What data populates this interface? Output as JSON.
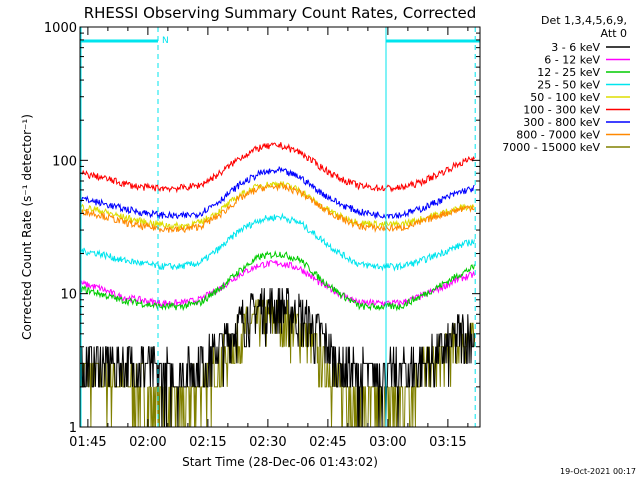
{
  "chart_data": {
    "type": "line",
    "title": "RHESSI Observing Summary Count Rates, Corrected",
    "xlabel": "Start Time (28-Dec-06 01:43:02)",
    "ylabel": "Corrected Count Rate (s⁻¹ detector⁻¹)",
    "y_scale": "log",
    "ylim": [
      1,
      1000
    ],
    "xlim_minutes_after_start": [
      0,
      100
    ],
    "x_tick_labels": [
      "01:45",
      "02:00",
      "02:15",
      "02:30",
      "02:45",
      "03:00",
      "03:15"
    ],
    "x_tick_minutes": [
      1.97,
      16.97,
      31.97,
      46.97,
      61.97,
      76.97,
      91.97
    ],
    "y_tick_labels": [
      "1",
      "10",
      "100",
      "1000"
    ],
    "y_tick_values": [
      1,
      10,
      100,
      1000
    ],
    "legend_header": [
      "Det 1,3,4,5,6,9,",
      "Att 0"
    ],
    "legend_position": "right",
    "footer_date": "19-Oct-2021 00:17",
    "annotations": [
      {
        "text": "N",
        "type": "night",
        "x_range_minutes": [
          0,
          19.5
        ]
      },
      {
        "text": "",
        "type": "night",
        "x_range_minutes": [
          76.5,
          100
        ]
      }
    ],
    "vertical_markers_minutes": [
      19.5,
      98.8
    ],
    "x_sample_minutes": [
      0,
      5,
      10,
      15,
      20,
      25,
      30,
      35,
      40,
      45,
      50,
      55,
      60,
      65,
      70,
      75,
      80,
      85,
      90,
      95,
      98.8
    ],
    "series": [
      {
        "name": "3 - 6 keV",
        "color": "#000000",
        "values": [
          3,
          3,
          3,
          3,
          2.5,
          2.5,
          3,
          4,
          6,
          8,
          8,
          7,
          5,
          3,
          2.5,
          2.5,
          2.5,
          3,
          3.5,
          5,
          5
        ]
      },
      {
        "name": "6 - 12 keV",
        "color": "#ff00ff",
        "values": [
          12,
          11,
          9.5,
          9,
          8.5,
          8.5,
          9,
          11,
          14,
          16.5,
          17,
          15.5,
          12,
          10,
          8.5,
          8.5,
          8.5,
          9.5,
          11,
          13,
          14
        ]
      },
      {
        "name": "12 - 25 keV",
        "color": "#00cc00",
        "values": [
          11,
          10,
          9,
          8.5,
          8,
          8,
          8.5,
          11,
          15,
          19,
          20,
          18,
          13,
          10,
          8,
          8,
          8,
          9.5,
          11.5,
          14,
          16
        ]
      },
      {
        "name": "25 - 50 keV",
        "color": "#00e5ee",
        "values": [
          21,
          20,
          18,
          17,
          16,
          16,
          17,
          22,
          30,
          36,
          38,
          34,
          26,
          20,
          16.5,
          16,
          16,
          17.5,
          20,
          23,
          25
        ]
      },
      {
        "name": "50 - 100 keV",
        "color": "#dddd00",
        "values": [
          45,
          42,
          38,
          35,
          33,
          32,
          34,
          42,
          55,
          65,
          67,
          60,
          46,
          38,
          34,
          33,
          33,
          36,
          40,
          44,
          45
        ]
      },
      {
        "name": "100 - 300 keV",
        "color": "#ff0000",
        "values": [
          80,
          75,
          68,
          63,
          62,
          62,
          65,
          80,
          105,
          125,
          130,
          115,
          90,
          73,
          64,
          62,
          62,
          68,
          80,
          95,
          105
        ]
      },
      {
        "name": "300 - 800 keV",
        "color": "#0000ff",
        "values": [
          52,
          48,
          44,
          41,
          39,
          38,
          40,
          50,
          66,
          80,
          84,
          75,
          58,
          47,
          41,
          39,
          39,
          43,
          50,
          58,
          62
        ]
      },
      {
        "name": "800 - 7000 keV",
        "color": "#ff8800",
        "values": [
          42,
          39,
          35,
          32,
          31,
          30,
          32,
          39,
          52,
          62,
          64,
          58,
          45,
          37,
          32,
          31,
          31,
          34,
          39,
          43,
          45
        ]
      },
      {
        "name": "7000 - 15000 keV",
        "color": "#808000",
        "values": [
          2.5,
          2.5,
          2.2,
          2,
          1.5,
          1.5,
          2,
          3,
          5,
          6.5,
          6.5,
          5.5,
          3.5,
          2,
          1.5,
          1.5,
          1.6,
          2.5,
          3.5,
          4.5,
          4.5
        ]
      }
    ]
  }
}
